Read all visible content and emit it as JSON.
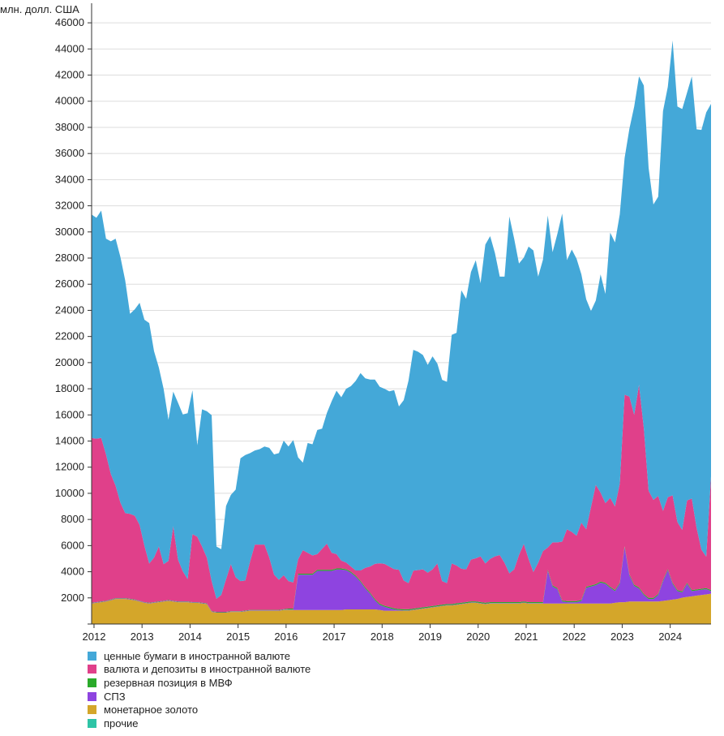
{
  "chart_data": {
    "type": "area",
    "stacked": true,
    "unit_label": "млн. долл. США",
    "title": "",
    "xlabel": "",
    "ylabel": "",
    "ylim": [
      0,
      47000
    ],
    "xlim": [
      2011.95,
      2024.85
    ],
    "y_ticks": [
      2000,
      4000,
      6000,
      8000,
      10000,
      12000,
      14000,
      16000,
      18000,
      20000,
      22000,
      24000,
      26000,
      28000,
      30000,
      32000,
      34000,
      36000,
      38000,
      40000,
      42000,
      44000,
      46000
    ],
    "x_ticks": [
      2012,
      2013,
      2014,
      2015,
      2016,
      2017,
      2018,
      2019,
      2020,
      2021,
      2022,
      2023,
      2024
    ],
    "grid": "horizontal",
    "legend_position": "bottom-left",
    "x": [
      2011.95,
      2012.05,
      2012.15,
      2012.25,
      2012.35,
      2012.45,
      2012.55,
      2012.65,
      2012.75,
      2012.85,
      2012.95,
      2013.05,
      2013.15,
      2013.25,
      2013.35,
      2013.45,
      2013.55,
      2013.65,
      2013.75,
      2013.85,
      2013.95,
      2014.05,
      2014.15,
      2014.25,
      2014.35,
      2014.45,
      2014.55,
      2014.65,
      2014.75,
      2014.85,
      2014.95,
      2015.05,
      2015.15,
      2015.25,
      2015.35,
      2015.45,
      2015.55,
      2015.65,
      2015.75,
      2015.85,
      2015.95,
      2016.05,
      2016.15,
      2016.25,
      2016.35,
      2016.45,
      2016.55,
      2016.65,
      2016.75,
      2016.85,
      2016.95,
      2017.05,
      2017.15,
      2017.25,
      2017.35,
      2017.45,
      2017.55,
      2017.65,
      2017.75,
      2017.85,
      2017.95,
      2018.05,
      2018.15,
      2018.25,
      2018.35,
      2018.45,
      2018.55,
      2018.65,
      2018.75,
      2018.85,
      2018.95,
      2019.05,
      2019.15,
      2019.25,
      2019.35,
      2019.45,
      2019.55,
      2019.65,
      2019.75,
      2019.85,
      2019.95,
      2020.05,
      2020.15,
      2020.25,
      2020.35,
      2020.45,
      2020.55,
      2020.65,
      2020.75,
      2020.85,
      2020.95,
      2021.05,
      2021.15,
      2021.25,
      2021.35,
      2021.45,
      2021.55,
      2021.65,
      2021.75,
      2021.85,
      2021.95,
      2022.05,
      2022.15,
      2022.25,
      2022.35,
      2022.45,
      2022.55,
      2022.65,
      2022.75,
      2022.85,
      2022.95,
      2023.05,
      2023.15,
      2023.25,
      2023.35,
      2023.45,
      2023.55,
      2023.65,
      2023.75,
      2023.85,
      2023.95,
      2024.05,
      2024.15,
      2024.25,
      2024.35,
      2024.45,
      2024.55,
      2024.65,
      2024.75,
      2024.85
    ],
    "series": [
      {
        "name": "прочие",
        "color": "#2ec4a6",
        "values": [
          20,
          20,
          20,
          20,
          20,
          20,
          20,
          20,
          20,
          20,
          20,
          20,
          20,
          20,
          20,
          20,
          20,
          20,
          20,
          20,
          20,
          20,
          20,
          20,
          20,
          20,
          20,
          20,
          20,
          20,
          20,
          20,
          20,
          20,
          20,
          20,
          20,
          20,
          20,
          20,
          20,
          20,
          20,
          20,
          20,
          20,
          20,
          20,
          20,
          20,
          20,
          20,
          20,
          20,
          20,
          20,
          20,
          20,
          20,
          20,
          20,
          20,
          20,
          20,
          20,
          20,
          20,
          20,
          20,
          20,
          20,
          20,
          20,
          20,
          20,
          20,
          20,
          20,
          20,
          20,
          20,
          20,
          20,
          20,
          20,
          20,
          20,
          20,
          20,
          20,
          20,
          20,
          20,
          20,
          20,
          20,
          20,
          20,
          20,
          20,
          20,
          20,
          20,
          20,
          20,
          20,
          20,
          20,
          20,
          20,
          20,
          20,
          20,
          20,
          20,
          20,
          20,
          20,
          20,
          20,
          20,
          20,
          20,
          20,
          20,
          20,
          20,
          20,
          20,
          20
        ]
      },
      {
        "name": "монетарное золото",
        "color": "#d4a62a",
        "values": [
          1550,
          1600,
          1650,
          1700,
          1800,
          1900,
          1900,
          1900,
          1850,
          1800,
          1700,
          1600,
          1550,
          1600,
          1650,
          1700,
          1750,
          1700,
          1650,
          1650,
          1650,
          1600,
          1600,
          1550,
          1500,
          900,
          850,
          850,
          850,
          900,
          900,
          900,
          950,
          1000,
          1000,
          1000,
          1000,
          1000,
          1000,
          1000,
          1050,
          1050,
          1050,
          1050,
          1050,
          1050,
          1050,
          1050,
          1050,
          1050,
          1050,
          1050,
          1050,
          1100,
          1100,
          1100,
          1100,
          1100,
          1100,
          1100,
          1050,
          1000,
          1000,
          1000,
          1000,
          1000,
          1000,
          1050,
          1100,
          1150,
          1200,
          1250,
          1300,
          1350,
          1400,
          1400,
          1450,
          1500,
          1550,
          1600,
          1600,
          1550,
          1500,
          1550,
          1550,
          1550,
          1550,
          1550,
          1550,
          1550,
          1600,
          1550,
          1550,
          1550,
          1550,
          1550,
          1550,
          1550,
          1550,
          1550,
          1550,
          1550,
          1550,
          1550,
          1550,
          1550,
          1550,
          1550,
          1550,
          1600,
          1650,
          1650,
          1700,
          1700,
          1700,
          1700,
          1700,
          1700,
          1700,
          1750,
          1800,
          1850,
          1900,
          2000,
          2050,
          2100,
          2150,
          2200,
          2250,
          2300
        ]
      },
      {
        "name": "СПЗ",
        "color": "#8e44e0",
        "values": [
          30,
          30,
          30,
          30,
          30,
          30,
          30,
          30,
          30,
          30,
          30,
          30,
          30,
          30,
          30,
          30,
          30,
          30,
          30,
          30,
          30,
          30,
          30,
          30,
          30,
          30,
          30,
          30,
          30,
          30,
          30,
          30,
          30,
          30,
          30,
          30,
          30,
          30,
          30,
          30,
          30,
          30,
          30,
          2700,
          2700,
          2700,
          2700,
          3000,
          3000,
          3000,
          3000,
          3100,
          3100,
          3000,
          2800,
          2500,
          2100,
          1600,
          1200,
          700,
          400,
          300,
          200,
          100,
          50,
          30,
          30,
          30,
          30,
          30,
          30,
          30,
          30,
          30,
          30,
          30,
          30,
          30,
          30,
          30,
          30,
          30,
          30,
          30,
          30,
          30,
          30,
          30,
          30,
          30,
          30,
          30,
          30,
          30,
          30,
          2500,
          1300,
          1100,
          150,
          100,
          100,
          100,
          200,
          1200,
          1300,
          1400,
          1600,
          1500,
          1200,
          900,
          1400,
          4200,
          2000,
          1200,
          1000,
          500,
          200,
          200,
          500,
          1500,
          2300,
          1200,
          600,
          400,
          1000,
          400,
          400,
          400,
          400,
          200
        ]
      },
      {
        "name": "резервная позиция в МВФ",
        "color": "#2aaa2a",
        "values": [
          30,
          30,
          30,
          30,
          30,
          30,
          30,
          30,
          30,
          30,
          30,
          30,
          30,
          30,
          30,
          30,
          30,
          30,
          30,
          30,
          30,
          30,
          30,
          30,
          30,
          30,
          30,
          30,
          30,
          30,
          30,
          30,
          30,
          30,
          30,
          30,
          30,
          30,
          30,
          30,
          30,
          80,
          80,
          80,
          80,
          80,
          80,
          80,
          80,
          80,
          80,
          80,
          80,
          80,
          80,
          80,
          80,
          80,
          80,
          80,
          80,
          80,
          80,
          80,
          80,
          80,
          80,
          80,
          80,
          80,
          80,
          80,
          80,
          80,
          80,
          80,
          80,
          80,
          80,
          80,
          80,
          80,
          80,
          80,
          80,
          80,
          80,
          80,
          80,
          80,
          80,
          80,
          80,
          80,
          80,
          80,
          80,
          80,
          80,
          80,
          80,
          80,
          80,
          80,
          80,
          80,
          80,
          80,
          80,
          80,
          80,
          80,
          80,
          80,
          80,
          80,
          80,
          80,
          80,
          80,
          80,
          80,
          80,
          80,
          80,
          80,
          80,
          80,
          80,
          80
        ]
      },
      {
        "name": "валюта и депозиты в иностранной валюте",
        "color": "#e0408a",
        "values": [
          12600,
          12500,
          12500,
          11200,
          9600,
          8600,
          7300,
          6500,
          6500,
          6400,
          5800,
          4300,
          3000,
          3400,
          4200,
          2800,
          3000,
          5700,
          3200,
          2300,
          1700,
          5200,
          5000,
          4300,
          3500,
          2300,
          1000,
          1300,
          2500,
          3600,
          2600,
          2300,
          2300,
          3700,
          5000,
          5000,
          5000,
          4000,
          2700,
          2300,
          2600,
          2100,
          2000,
          1100,
          1800,
          1600,
          1400,
          1200,
          1600,
          2000,
          1300,
          1100,
          600,
          500,
          400,
          400,
          800,
          1500,
          2000,
          2700,
          3100,
          3200,
          3100,
          3000,
          3000,
          2200,
          2000,
          2900,
          2900,
          2900,
          2600,
          2800,
          3200,
          1800,
          1600,
          3100,
          2900,
          2600,
          2500,
          3200,
          3300,
          3500,
          3000,
          3300,
          3500,
          3600,
          3000,
          2200,
          2500,
          3600,
          4400,
          3300,
          2300,
          3000,
          3900,
          1700,
          3300,
          3500,
          4500,
          5500,
          5300,
          5000,
          5900,
          4400,
          6000,
          7600,
          6800,
          6100,
          6800,
          6400,
          7600,
          11600,
          13600,
          13000,
          15500,
          12700,
          8200,
          7500,
          7500,
          5300,
          5500,
          6700,
          5200,
          4700,
          6300,
          7000,
          4700,
          3000,
          2400,
          8700
        ]
      },
      {
        "name": "ценные бумаги в иностранной валюте",
        "color": "#44a8d8",
        "values": [
          17100,
          16900,
          17400,
          16500,
          17800,
          18900,
          18800,
          17800,
          15300,
          15800,
          17000,
          17300,
          18400,
          15800,
          13700,
          13400,
          10800,
          10300,
          12000,
          12000,
          12700,
          11000,
          7000,
          10500,
          11200,
          12700,
          4000,
          3500,
          5600,
          5300,
          6700,
          9400,
          9600,
          8300,
          7200,
          7300,
          7500,
          8400,
          9200,
          9700,
          10300,
          10300,
          10900,
          7800,
          6700,
          8400,
          8500,
          9500,
          9200,
          10000,
          11600,
          12500,
          12500,
          13300,
          13800,
          14500,
          15100,
          14500,
          14300,
          14100,
          13500,
          13400,
          13400,
          13700,
          12500,
          13800,
          15500,
          16900,
          16700,
          16400,
          15900,
          16300,
          15300,
          15400,
          15400,
          17500,
          17800,
          21300,
          20700,
          22000,
          22800,
          20900,
          24400,
          24700,
          23200,
          21300,
          21900,
          27300,
          25300,
          22300,
          21900,
          23900,
          24600,
          21900,
          22300,
          25400,
          22200,
          23600,
          25100,
          20600,
          21600,
          21200,
          19000,
          17600,
          15000,
          14100,
          16700,
          16000,
          20300,
          20200,
          20600,
          18100,
          20500,
          23600,
          23600,
          26200,
          24700,
          22600,
          22900,
          30600,
          31400,
          34800,
          31800,
          32200,
          31200,
          32300,
          30500,
          32100,
          34000,
          28500
        ]
      }
    ]
  }
}
